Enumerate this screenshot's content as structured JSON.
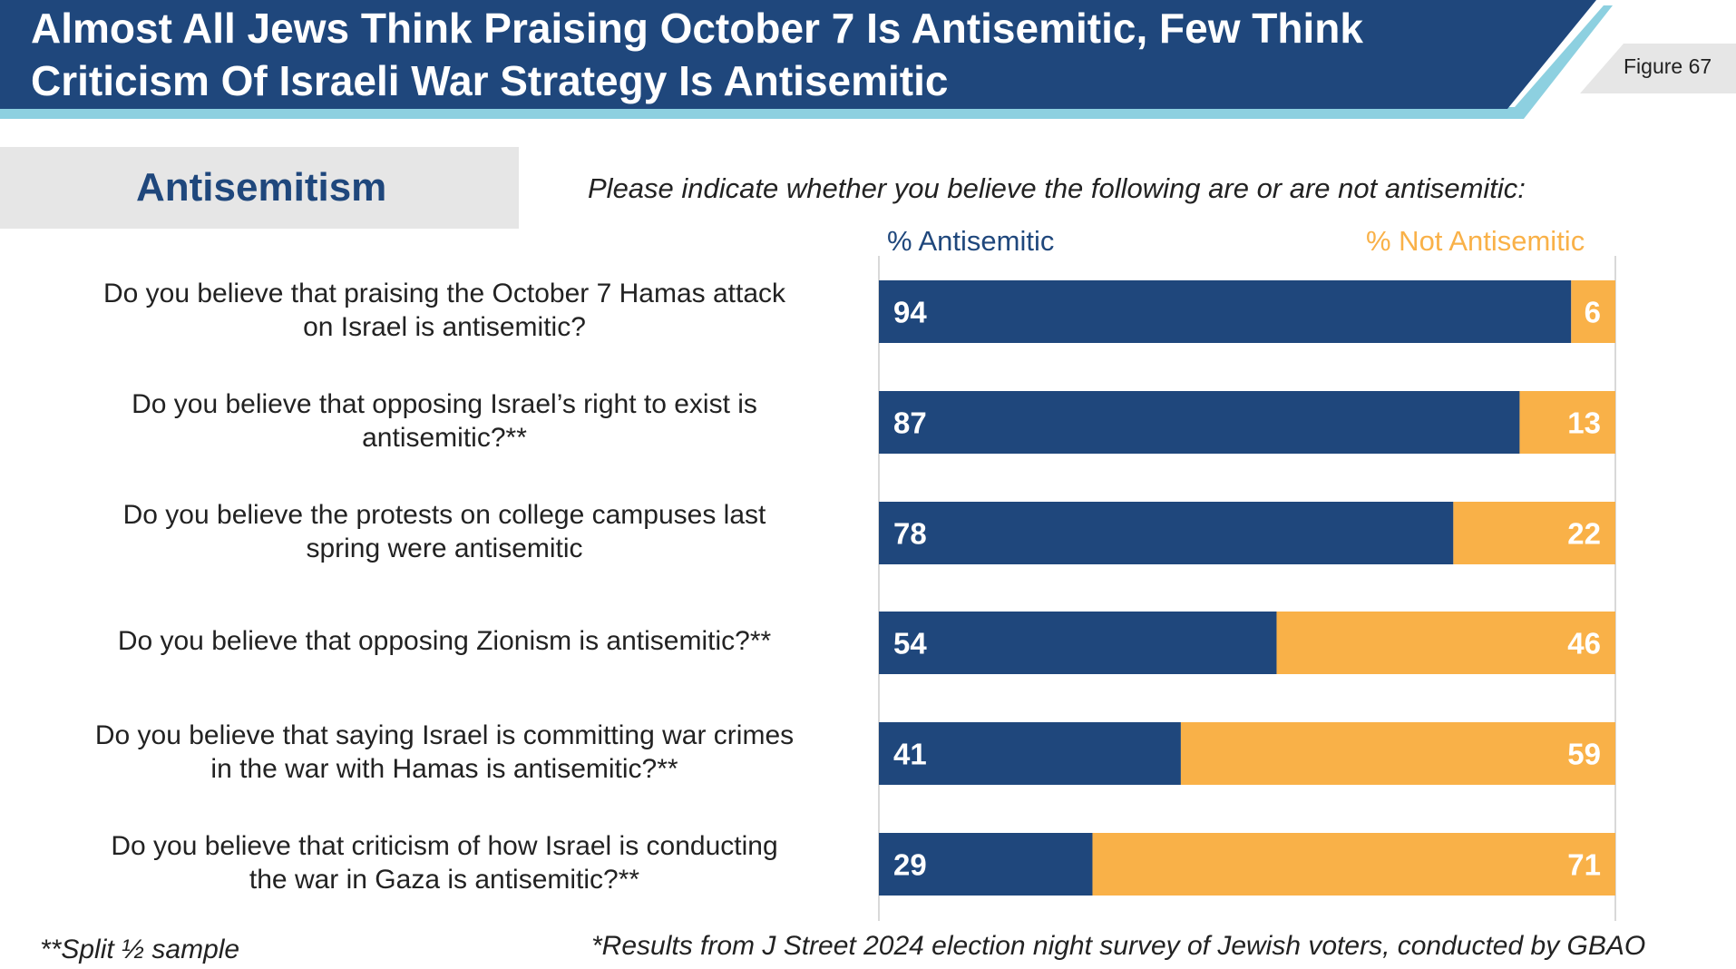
{
  "header": {
    "title_line1": "Almost All Jews Think Praising October 7 Is Antisemitic, Few Think",
    "title_line2": "Criticism Of Israeli War Strategy Is Antisemitic",
    "figure_label": "Figure 67"
  },
  "section": {
    "title": "Antisemitism",
    "question": "Please indicate whether you believe the following are or are not antisemitic:"
  },
  "colors": {
    "navy": "#1f477c",
    "orange": "#f9b148",
    "header_blue": "#1f477c",
    "header_light": "#8dd0e0"
  },
  "chart_data": {
    "type": "bar",
    "orientation": "horizontal-stacked-100",
    "categories": [
      [
        "Do you believe that praising the October 7 Hamas attack",
        "on Israel is antisemitic?"
      ],
      [
        "Do you believe that opposing Israel’s right to exist is",
        "antisemitic?**"
      ],
      [
        "Do you believe the protests on college campuses last",
        "spring were antisemitic"
      ],
      [
        "Do you believe that opposing Zionism is antisemitic?**"
      ],
      [
        "Do you believe that saying Israel is committing war crimes",
        "in the war with Hamas is antisemitic?**"
      ],
      [
        "Do you believe that criticism of how Israel is conducting",
        "the war in Gaza is antisemitic?**"
      ]
    ],
    "series": [
      {
        "name": "% Antisemitic",
        "color": "#1f477c",
        "values": [
          94,
          87,
          78,
          54,
          41,
          29
        ]
      },
      {
        "name": "% Not Antisemitic",
        "color": "#f9b148",
        "values": [
          6,
          13,
          22,
          46,
          59,
          71
        ]
      }
    ],
    "xlim": [
      0,
      100
    ]
  },
  "footnotes": {
    "left": "**Split ½ sample",
    "right": "*Results from J Street 2024 election night survey of Jewish voters, conducted by GBAO"
  }
}
